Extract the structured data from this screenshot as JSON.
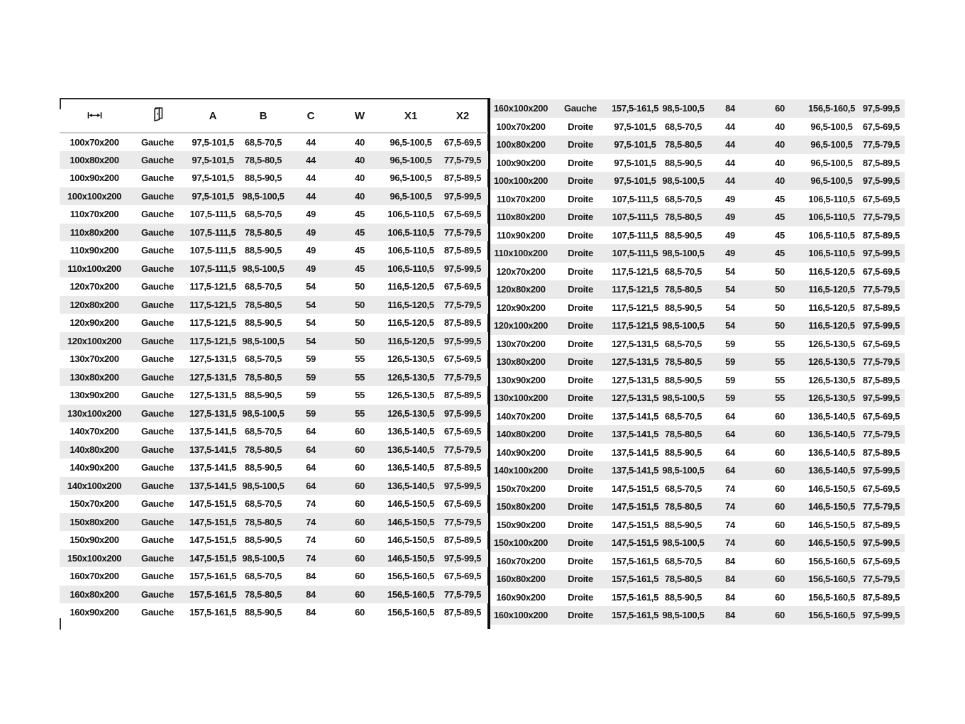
{
  "colors": {
    "stripe": "#eaeaea",
    "divider": "#0d0d0d",
    "text": "#161616",
    "header_rule": "#c9c9c9",
    "frame": "#2b2b2b"
  },
  "tables": {
    "column_keys": [
      "size",
      "orientation",
      "a",
      "b",
      "c",
      "w",
      "x1",
      "x2"
    ],
    "header": {
      "size_icon": "width-dimension-icon",
      "orientation_icon": "door-icon",
      "labels": [
        "A",
        "B",
        "C",
        "W",
        "X1",
        "X2"
      ]
    },
    "left_rows": [
      [
        "100x70x200",
        "Gauche",
        "97,5-101,5",
        "68,5-70,5",
        "44",
        "40",
        "96,5-100,5",
        "67,5-69,5"
      ],
      [
        "100x80x200",
        "Gauche",
        "97,5-101,5",
        "78,5-80,5",
        "44",
        "40",
        "96,5-100,5",
        "77,5-79,5"
      ],
      [
        "100x90x200",
        "Gauche",
        "97,5-101,5",
        "88,5-90,5",
        "44",
        "40",
        "96,5-100,5",
        "87,5-89,5"
      ],
      [
        "100x100x200",
        "Gauche",
        "97,5-101,5",
        "98,5-100,5",
        "44",
        "40",
        "96,5-100,5",
        "97,5-99,5"
      ],
      [
        "110x70x200",
        "Gauche",
        "107,5-111,5",
        "68,5-70,5",
        "49",
        "45",
        "106,5-110,5",
        "67,5-69,5"
      ],
      [
        "110x80x200",
        "Gauche",
        "107,5-111,5",
        "78,5-80,5",
        "49",
        "45",
        "106,5-110,5",
        "77,5-79,5"
      ],
      [
        "110x90x200",
        "Gauche",
        "107,5-111,5",
        "88,5-90,5",
        "49",
        "45",
        "106,5-110,5",
        "87,5-89,5"
      ],
      [
        "110x100x200",
        "Gauche",
        "107,5-111,5",
        "98,5-100,5",
        "49",
        "45",
        "106,5-110,5",
        "97,5-99,5"
      ],
      [
        "120x70x200",
        "Gauche",
        "117,5-121,5",
        "68,5-70,5",
        "54",
        "50",
        "116,5-120,5",
        "67,5-69,5"
      ],
      [
        "120x80x200",
        "Gauche",
        "117,5-121,5",
        "78,5-80,5",
        "54",
        "50",
        "116,5-120,5",
        "77,5-79,5"
      ],
      [
        "120x90x200",
        "Gauche",
        "117,5-121,5",
        "88,5-90,5",
        "54",
        "50",
        "116,5-120,5",
        "87,5-89,5"
      ],
      [
        "120x100x200",
        "Gauche",
        "117,5-121,5",
        "98,5-100,5",
        "54",
        "50",
        "116,5-120,5",
        "97,5-99,5"
      ],
      [
        "130x70x200",
        "Gauche",
        "127,5-131,5",
        "68,5-70,5",
        "59",
        "55",
        "126,5-130,5",
        "67,5-69,5"
      ],
      [
        "130x80x200",
        "Gauche",
        "127,5-131,5",
        "78,5-80,5",
        "59",
        "55",
        "126,5-130,5",
        "77,5-79,5"
      ],
      [
        "130x90x200",
        "Gauche",
        "127,5-131,5",
        "88,5-90,5",
        "59",
        "55",
        "126,5-130,5",
        "87,5-89,5"
      ],
      [
        "130x100x200",
        "Gauche",
        "127,5-131,5",
        "98,5-100,5",
        "59",
        "55",
        "126,5-130,5",
        "97,5-99,5"
      ],
      [
        "140x70x200",
        "Gauche",
        "137,5-141,5",
        "68,5-70,5",
        "64",
        "60",
        "136,5-140,5",
        "67,5-69,5"
      ],
      [
        "140x80x200",
        "Gauche",
        "137,5-141,5",
        "78,5-80,5",
        "64",
        "60",
        "136,5-140,5",
        "77,5-79,5"
      ],
      [
        "140x90x200",
        "Gauche",
        "137,5-141,5",
        "88,5-90,5",
        "64",
        "60",
        "136,5-140,5",
        "87,5-89,5"
      ],
      [
        "140x100x200",
        "Gauche",
        "137,5-141,5",
        "98,5-100,5",
        "64",
        "60",
        "136,5-140,5",
        "97,5-99,5"
      ],
      [
        "150x70x200",
        "Gauche",
        "147,5-151,5",
        "68,5-70,5",
        "74",
        "60",
        "146,5-150,5",
        "67,5-69,5"
      ],
      [
        "150x80x200",
        "Gauche",
        "147,5-151,5",
        "78,5-80,5",
        "74",
        "60",
        "146,5-150,5",
        "77,5-79,5"
      ],
      [
        "150x90x200",
        "Gauche",
        "147,5-151,5",
        "88,5-90,5",
        "74",
        "60",
        "146,5-150,5",
        "87,5-89,5"
      ],
      [
        "150x100x200",
        "Gauche",
        "147,5-151,5",
        "98,5-100,5",
        "74",
        "60",
        "146,5-150,5",
        "97,5-99,5"
      ],
      [
        "160x70x200",
        "Gauche",
        "157,5-161,5",
        "68,5-70,5",
        "84",
        "60",
        "156,5-160,5",
        "67,5-69,5"
      ],
      [
        "160x80x200",
        "Gauche",
        "157,5-161,5",
        "78,5-80,5",
        "84",
        "60",
        "156,5-160,5",
        "77,5-79,5"
      ],
      [
        "160x90x200",
        "Gauche",
        "157,5-161,5",
        "88,5-90,5",
        "84",
        "60",
        "156,5-160,5",
        "87,5-89,5"
      ]
    ],
    "right_rows": [
      [
        "160x100x200",
        "Gauche",
        "157,5-161,5",
        "98,5-100,5",
        "84",
        "60",
        "156,5-160,5",
        "97,5-99,5"
      ],
      [
        "100x70x200",
        "Droite",
        "97,5-101,5",
        "68,5-70,5",
        "44",
        "40",
        "96,5-100,5",
        "67,5-69,5"
      ],
      [
        "100x80x200",
        "Droite",
        "97,5-101,5",
        "78,5-80,5",
        "44",
        "40",
        "96,5-100,5",
        "77,5-79,5"
      ],
      [
        "100x90x200",
        "Droite",
        "97,5-101,5",
        "88,5-90,5",
        "44",
        "40",
        "96,5-100,5",
        "87,5-89,5"
      ],
      [
        "100x100x200",
        "Droite",
        "97,5-101,5",
        "98,5-100,5",
        "44",
        "40",
        "96,5-100,5",
        "97,5-99,5"
      ],
      [
        "110x70x200",
        "Droite",
        "107,5-111,5",
        "68,5-70,5",
        "49",
        "45",
        "106,5-110,5",
        "67,5-69,5"
      ],
      [
        "110x80x200",
        "Droite",
        "107,5-111,5",
        "78,5-80,5",
        "49",
        "45",
        "106,5-110,5",
        "77,5-79,5"
      ],
      [
        "110x90x200",
        "Droite",
        "107,5-111,5",
        "88,5-90,5",
        "49",
        "45",
        "106,5-110,5",
        "87,5-89,5"
      ],
      [
        "110x100x200",
        "Droite",
        "107,5-111,5",
        "98,5-100,5",
        "49",
        "45",
        "106,5-110,5",
        "97,5-99,5"
      ],
      [
        "120x70x200",
        "Droite",
        "117,5-121,5",
        "68,5-70,5",
        "54",
        "50",
        "116,5-120,5",
        "67,5-69,5"
      ],
      [
        "120x80x200",
        "Droite",
        "117,5-121,5",
        "78,5-80,5",
        "54",
        "50",
        "116,5-120,5",
        "77,5-79,5"
      ],
      [
        "120x90x200",
        "Droite",
        "117,5-121,5",
        "88,5-90,5",
        "54",
        "50",
        "116,5-120,5",
        "87,5-89,5"
      ],
      [
        "120x100x200",
        "Droite",
        "117,5-121,5",
        "98,5-100,5",
        "54",
        "50",
        "116,5-120,5",
        "97,5-99,5"
      ],
      [
        "130x70x200",
        "Droite",
        "127,5-131,5",
        "68,5-70,5",
        "59",
        "55",
        "126,5-130,5",
        "67,5-69,5"
      ],
      [
        "130x80x200",
        "Droite",
        "127,5-131,5",
        "78,5-80,5",
        "59",
        "55",
        "126,5-130,5",
        "77,5-79,5"
      ],
      [
        "130x90x200",
        "Droite",
        "127,5-131,5",
        "88,5-90,5",
        "59",
        "55",
        "126,5-130,5",
        "87,5-89,5"
      ],
      [
        "130x100x200",
        "Droite",
        "127,5-131,5",
        "98,5-100,5",
        "59",
        "55",
        "126,5-130,5",
        "97,5-99,5"
      ],
      [
        "140x70x200",
        "Droite",
        "137,5-141,5",
        "68,5-70,5",
        "64",
        "60",
        "136,5-140,5",
        "67,5-69,5"
      ],
      [
        "140x80x200",
        "Droite",
        "137,5-141,5",
        "78,5-80,5",
        "64",
        "60",
        "136,5-140,5",
        "77,5-79,5"
      ],
      [
        "140x90x200",
        "Droite",
        "137,5-141,5",
        "88,5-90,5",
        "64",
        "60",
        "136,5-140,5",
        "87,5-89,5"
      ],
      [
        "140x100x200",
        "Droite",
        "137,5-141,5",
        "98,5-100,5",
        "64",
        "60",
        "136,5-140,5",
        "97,5-99,5"
      ],
      [
        "150x70x200",
        "Droite",
        "147,5-151,5",
        "68,5-70,5",
        "74",
        "60",
        "146,5-150,5",
        "67,5-69,5"
      ],
      [
        "150x80x200",
        "Droite",
        "147,5-151,5",
        "78,5-80,5",
        "74",
        "60",
        "146,5-150,5",
        "77,5-79,5"
      ],
      [
        "150x90x200",
        "Droite",
        "147,5-151,5",
        "88,5-90,5",
        "74",
        "60",
        "146,5-150,5",
        "87,5-89,5"
      ],
      [
        "150x100x200",
        "Droite",
        "147,5-151,5",
        "98,5-100,5",
        "74",
        "60",
        "146,5-150,5",
        "97,5-99,5"
      ],
      [
        "160x70x200",
        "Droite",
        "157,5-161,5",
        "68,5-70,5",
        "84",
        "60",
        "156,5-160,5",
        "67,5-69,5"
      ],
      [
        "160x80x200",
        "Droite",
        "157,5-161,5",
        "78,5-80,5",
        "84",
        "60",
        "156,5-160,5",
        "77,5-79,5"
      ],
      [
        "160x90x200",
        "Droite",
        "157,5-161,5",
        "88,5-90,5",
        "84",
        "60",
        "156,5-160,5",
        "87,5-89,5"
      ],
      [
        "160x100x200",
        "Droite",
        "157,5-161,5",
        "98,5-100,5",
        "84",
        "60",
        "156,5-160,5",
        "97,5-99,5"
      ]
    ]
  }
}
